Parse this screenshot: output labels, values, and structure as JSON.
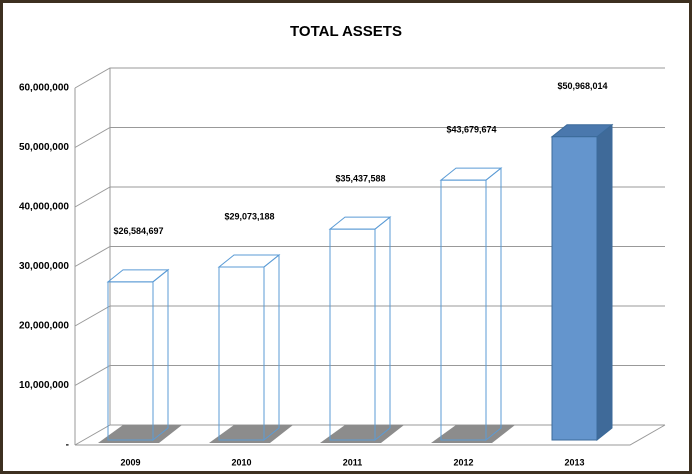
{
  "chart_data": {
    "type": "bar3d",
    "title": "TOTAL ASSETS",
    "categories": [
      "2009",
      "2010",
      "2011",
      "2012",
      "2013"
    ],
    "values": [
      26584697,
      29073188,
      35437588,
      43679674,
      50968014
    ],
    "value_labels": [
      "$26,584,697",
      "$29,073,188",
      "$35,437,588",
      "$43,679,674",
      "$50,968,014"
    ],
    "colors": [
      "none",
      "none",
      "none",
      "none",
      "#6495cd"
    ],
    "edge_color": "#5b9bd5",
    "ylim": [
      0,
      60000000
    ],
    "yticks": [
      {
        "value": 0,
        "label": "-"
      },
      {
        "value": 10000000,
        "label": "10,000,000"
      },
      {
        "value": 20000000,
        "label": "20,000,000"
      },
      {
        "value": 30000000,
        "label": "30,000,000"
      },
      {
        "value": 40000000,
        "label": "40,000,000"
      },
      {
        "value": 50000000,
        "label": "50,000,000"
      },
      {
        "value": 60000000,
        "label": "60,000,000"
      }
    ],
    "grid": true
  }
}
